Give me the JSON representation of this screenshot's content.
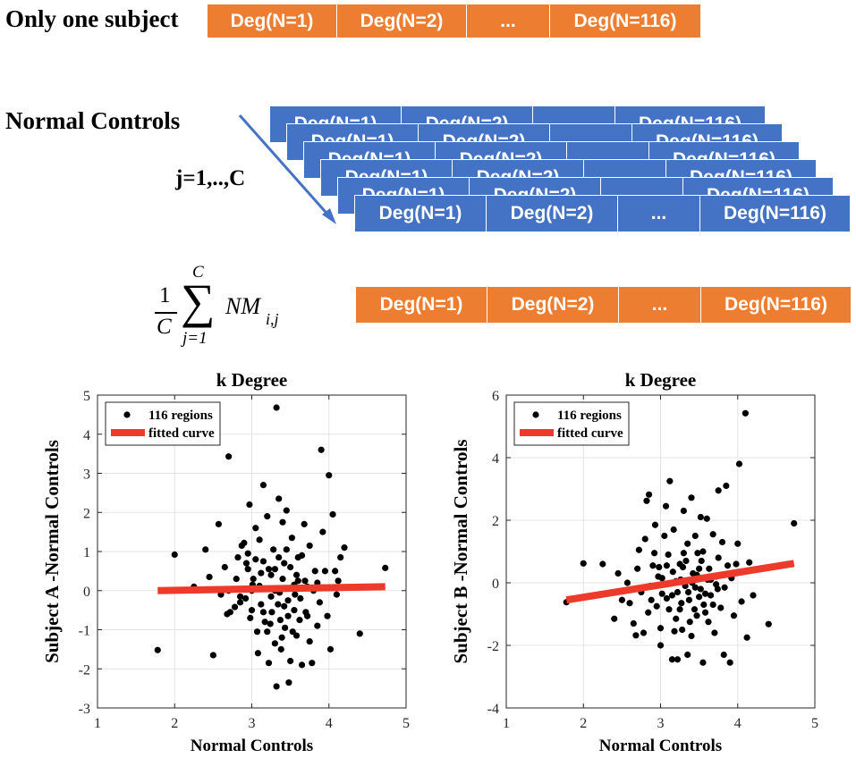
{
  "top": {
    "subject_label": "Only one subject",
    "cells": [
      "Deg(N=1)",
      "Deg(N=2)",
      "...",
      "Deg(N=116)"
    ]
  },
  "controls": {
    "label": "Normal Controls",
    "index_label": "j=1,..,C",
    "cells": [
      "Deg(N=1)",
      "Deg(N=2)",
      "...",
      "Deg(N=116)"
    ]
  },
  "mean": {
    "formula": {
      "frac_num": "1",
      "frac_den": "C",
      "sum_upper": "C",
      "sum_lower": "j=1",
      "term": "NM",
      "sub": "i,j"
    },
    "cells": [
      "Deg(N=1)",
      "Deg(N=2)",
      "...",
      "Deg(N=116)"
    ]
  },
  "colors": {
    "orange": "#ED7D31",
    "blue": "#4472C4",
    "arrow": "#4472C4",
    "fit": "#EE3A2B"
  },
  "chart_data": [
    {
      "type": "scatter",
      "title": "k Degree",
      "xlabel": "Normal Controls",
      "ylabel": "Subject A -Normal Controls",
      "xlim": [
        1,
        5
      ],
      "ylim": [
        -3,
        5
      ],
      "xticks": [
        1,
        2,
        3,
        4,
        5
      ],
      "yticks": [
        -3,
        -2,
        -1,
        0,
        1,
        2,
        3,
        4,
        5
      ],
      "grid": true,
      "legend": {
        "position": "top-left",
        "entries": [
          "116 regions",
          "fitted curve"
        ]
      },
      "fit": {
        "x": [
          1.78,
          4.73
        ],
        "y": [
          0.0,
          0.1
        ]
      },
      "points": [
        [
          1.78,
          -1.52
        ],
        [
          2.0,
          0.92
        ],
        [
          2.25,
          0.1
        ],
        [
          2.4,
          1.05
        ],
        [
          2.45,
          0.35
        ],
        [
          2.5,
          -1.65
        ],
        [
          2.57,
          1.7
        ],
        [
          2.6,
          -0.1
        ],
        [
          2.65,
          0.6
        ],
        [
          2.68,
          -0.6
        ],
        [
          2.7,
          3.43
        ],
        [
          2.7,
          0.0
        ],
        [
          2.72,
          -0.55
        ],
        [
          2.78,
          -0.42
        ],
        [
          2.8,
          0.3
        ],
        [
          2.82,
          0.85
        ],
        [
          2.85,
          -0.3
        ],
        [
          2.87,
          1.15
        ],
        [
          2.9,
          1.22
        ],
        [
          2.93,
          0.7
        ],
        [
          2.95,
          0.95
        ],
        [
          2.95,
          0.55
        ],
        [
          2.97,
          2.2
        ],
        [
          3.0,
          0.0
        ],
        [
          3.0,
          -0.5
        ],
        [
          3.02,
          0.3
        ],
        [
          3.05,
          1.6
        ],
        [
          3.07,
          -1.05
        ],
        [
          3.08,
          -1.6
        ],
        [
          3.1,
          0.12
        ],
        [
          3.12,
          -0.35
        ],
        [
          3.15,
          2.7
        ],
        [
          3.15,
          0.75
        ],
        [
          3.17,
          -0.8
        ],
        [
          3.2,
          1.9
        ],
        [
          3.2,
          -1.05
        ],
        [
          3.22,
          -1.85
        ],
        [
          3.25,
          0.4
        ],
        [
          3.25,
          -0.15
        ],
        [
          3.28,
          1.05
        ],
        [
          3.3,
          0.0
        ],
        [
          3.3,
          -1.35
        ],
        [
          3.32,
          4.68
        ],
        [
          3.32,
          -2.45
        ],
        [
          3.35,
          2.35
        ],
        [
          3.35,
          0.85
        ],
        [
          3.37,
          -0.75
        ],
        [
          3.38,
          -1.5
        ],
        [
          3.4,
          1.75
        ],
        [
          3.4,
          0.3
        ],
        [
          3.42,
          -0.4
        ],
        [
          3.43,
          -0.95
        ],
        [
          3.45,
          2.05
        ],
        [
          3.45,
          1.05
        ],
        [
          3.47,
          -0.25
        ],
        [
          3.48,
          -2.35
        ],
        [
          3.5,
          0.6
        ],
        [
          3.5,
          -1.8
        ],
        [
          3.52,
          1.35
        ],
        [
          3.55,
          -0.5
        ],
        [
          3.55,
          0.15
        ],
        [
          3.58,
          -1.15
        ],
        [
          3.6,
          0.25
        ],
        [
          3.62,
          -0.75
        ],
        [
          3.65,
          -1.9
        ],
        [
          3.65,
          0.9
        ],
        [
          3.68,
          1.7
        ],
        [
          3.7,
          -0.55
        ],
        [
          3.72,
          0.1
        ],
        [
          3.75,
          1.15
        ],
        [
          3.75,
          -1.3
        ],
        [
          3.78,
          -1.85
        ],
        [
          3.8,
          0.0
        ],
        [
          3.82,
          0.5
        ],
        [
          3.85,
          -0.9
        ],
        [
          3.88,
          -0.3
        ],
        [
          3.9,
          3.6
        ],
        [
          3.92,
          1.5
        ],
        [
          3.95,
          0.5
        ],
        [
          3.98,
          -0.65
        ],
        [
          4.0,
          2.95
        ],
        [
          4.02,
          -1.5
        ],
        [
          4.05,
          1.95
        ],
        [
          4.08,
          0.5
        ],
        [
          4.1,
          -0.1
        ],
        [
          4.12,
          0.25
        ],
        [
          4.15,
          0.85
        ],
        [
          4.2,
          1.1
        ],
        [
          4.4,
          -1.1
        ],
        [
          4.73,
          0.58
        ],
        [
          2.85,
          -0.15
        ],
        [
          3.05,
          0.8
        ],
        [
          3.1,
          1.3
        ],
        [
          3.26,
          -0.55
        ],
        [
          3.36,
          -0.05
        ],
        [
          3.42,
          0.7
        ],
        [
          3.58,
          0.4
        ],
        [
          3.63,
          -0.2
        ],
        [
          3.72,
          -0.65
        ],
        [
          3.85,
          0.2
        ],
        [
          3.15,
          -0.55
        ],
        [
          3.24,
          -0.85
        ],
        [
          3.39,
          -1.2
        ],
        [
          3.47,
          -0.65
        ],
        [
          2.98,
          -0.7
        ],
        [
          2.92,
          -0.2
        ],
        [
          3.53,
          -1.05
        ],
        [
          3.44,
          0.05
        ],
        [
          3.34,
          -0.35
        ],
        [
          3.56,
          -0.1
        ],
        [
          3.3,
          0.55
        ],
        [
          3.12,
          0.45
        ],
        [
          3.22,
          0.55
        ],
        [
          3.6,
          0.85
        ],
        [
          3.01,
          0.15
        ],
        [
          3.69,
          0.25
        ]
      ]
    },
    {
      "type": "scatter",
      "title": "k Degree",
      "xlabel": "Normal Controls",
      "ylabel": "Subject B -Normal Controls",
      "xlim": [
        1,
        5
      ],
      "ylim": [
        -4,
        6
      ],
      "xticks": [
        1,
        2,
        3,
        4,
        5
      ],
      "yticks": [
        -4,
        -2,
        0,
        2,
        4,
        6
      ],
      "grid": true,
      "legend": {
        "position": "top-left",
        "entries": [
          "116 regions",
          "fitted curve"
        ]
      },
      "fit": {
        "x": [
          1.78,
          4.73
        ],
        "y": [
          -0.55,
          0.62
        ]
      },
      "points": [
        [
          1.78,
          -0.62
        ],
        [
          2.0,
          0.62
        ],
        [
          2.25,
          0.6
        ],
        [
          2.4,
          -1.15
        ],
        [
          2.45,
          0.3
        ],
        [
          2.5,
          -0.55
        ],
        [
          2.57,
          0.0
        ],
        [
          2.6,
          -0.65
        ],
        [
          2.65,
          -1.3
        ],
        [
          2.68,
          -1.68
        ],
        [
          2.7,
          0.45
        ],
        [
          2.72,
          1.05
        ],
        [
          2.75,
          -0.3
        ],
        [
          2.78,
          -1.6
        ],
        [
          2.8,
          1.4
        ],
        [
          2.82,
          2.62
        ],
        [
          2.85,
          2.82
        ],
        [
          2.87,
          -0.1
        ],
        [
          2.9,
          0.55
        ],
        [
          2.93,
          1.85
        ],
        [
          2.95,
          -0.75
        ],
        [
          2.97,
          0.2
        ],
        [
          3.0,
          -1.45
        ],
        [
          3.0,
          -2.0
        ],
        [
          3.02,
          0.15
        ],
        [
          3.05,
          1.5
        ],
        [
          3.07,
          2.45
        ],
        [
          3.08,
          -0.5
        ],
        [
          3.1,
          0.9
        ],
        [
          3.12,
          3.25
        ],
        [
          3.15,
          -2.45
        ],
        [
          3.15,
          -0.4
        ],
        [
          3.17,
          1.7
        ],
        [
          3.2,
          0.05
        ],
        [
          3.2,
          -1.15
        ],
        [
          3.22,
          -2.45
        ],
        [
          3.25,
          0.6
        ],
        [
          3.25,
          -0.85
        ],
        [
          3.28,
          -1.5
        ],
        [
          3.3,
          2.3
        ],
        [
          3.3,
          0.95
        ],
        [
          3.32,
          -0.1
        ],
        [
          3.35,
          -2.3
        ],
        [
          3.35,
          1.25
        ],
        [
          3.37,
          -0.55
        ],
        [
          3.4,
          2.72
        ],
        [
          3.4,
          -1.7
        ],
        [
          3.42,
          0.3
        ],
        [
          3.45,
          -0.15
        ],
        [
          3.45,
          1.5
        ],
        [
          3.47,
          -1.05
        ],
        [
          3.5,
          0.45
        ],
        [
          3.5,
          -0.45
        ],
        [
          3.52,
          2.1
        ],
        [
          3.55,
          -2.55
        ],
        [
          3.55,
          1.0
        ],
        [
          3.58,
          -0.35
        ],
        [
          3.6,
          2.05
        ],
        [
          3.62,
          -1.25
        ],
        [
          3.65,
          0.1
        ],
        [
          3.65,
          -0.4
        ],
        [
          3.68,
          1.55
        ],
        [
          3.7,
          -1.6
        ],
        [
          3.72,
          -0.05
        ],
        [
          3.75,
          0.8
        ],
        [
          3.75,
          2.95
        ],
        [
          3.78,
          -0.8
        ],
        [
          3.8,
          1.3
        ],
        [
          3.82,
          -2.3
        ],
        [
          3.85,
          3.1
        ],
        [
          3.87,
          0.55
        ],
        [
          3.9,
          -2.55
        ],
        [
          3.92,
          0.15
        ],
        [
          3.95,
          -1.05
        ],
        [
          3.98,
          0.6
        ],
        [
          4.0,
          1.25
        ],
        [
          4.02,
          3.8
        ],
        [
          4.05,
          -0.6
        ],
        [
          4.07,
          0.35
        ],
        [
          4.1,
          5.42
        ],
        [
          4.12,
          -1.75
        ],
        [
          4.15,
          0.65
        ],
        [
          4.2,
          -0.4
        ],
        [
          4.4,
          -1.32
        ],
        [
          4.73,
          1.9
        ],
        [
          2.92,
          0.95
        ],
        [
          3.06,
          -0.05
        ],
        [
          3.16,
          0.35
        ],
        [
          3.26,
          0.1
        ],
        [
          3.36,
          -0.3
        ],
        [
          3.44,
          -0.85
        ],
        [
          3.53,
          0.7
        ],
        [
          3.63,
          0.45
        ],
        [
          3.72,
          0.2
        ],
        [
          3.83,
          -0.15
        ],
        [
          2.84,
          -0.95
        ],
        [
          3.11,
          -0.85
        ],
        [
          3.29,
          0.5
        ],
        [
          3.48,
          0.95
        ],
        [
          3.68,
          -0.7
        ],
        [
          2.98,
          0.5
        ],
        [
          3.38,
          -1.25
        ],
        [
          3.58,
          -0.95
        ],
        [
          3.18,
          -1.55
        ],
        [
          3.02,
          -0.35
        ],
        [
          3.22,
          -0.3
        ],
        [
          3.41,
          0.0
        ],
        [
          3.61,
          0.1
        ],
        [
          3.08,
          0.55
        ],
        [
          3.33,
          0.7
        ],
        [
          3.52,
          -0.2
        ],
        [
          3.74,
          -0.2
        ],
        [
          2.88,
          -0.55
        ],
        [
          3.47,
          0.25
        ],
        [
          3.56,
          -0.7
        ],
        [
          3.27,
          -0.65
        ]
      ]
    }
  ]
}
